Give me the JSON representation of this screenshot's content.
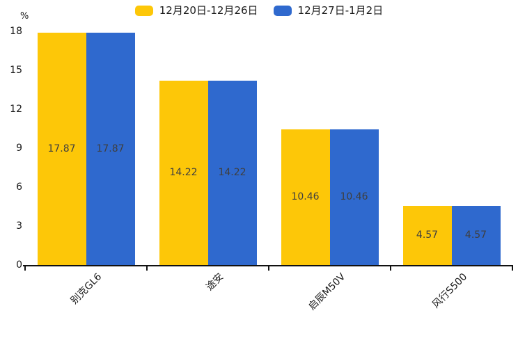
{
  "y_axis": {
    "unit_label": "%",
    "tick_labels": [
      "18",
      "15",
      "12",
      "9",
      "6",
      "3",
      "0"
    ]
  },
  "chart_data": {
    "type": "bar",
    "categories": [
      "别克GL6",
      "途安",
      "启辰M50V",
      "风行S500"
    ],
    "series": [
      {
        "name": "12月20日-12月26日",
        "color": "#FDC708",
        "values": [
          17.87,
          14.22,
          10.46,
          4.57
        ]
      },
      {
        "name": "12月27日-1月2日",
        "color": "#2F69CE",
        "values": [
          17.87,
          14.22,
          10.46,
          4.57
        ]
      }
    ],
    "title": "",
    "xlabel": "",
    "ylabel": "%",
    "ylim": [
      0,
      18
    ],
    "y_tick_step": 3,
    "grid": false,
    "legend_position": "top-center",
    "value_label_position": "centered-in-bar",
    "category_label_rotation_deg": -45
  },
  "colors": {
    "background": "#ffffff",
    "axis": "#111111",
    "tick_label_text": "#1a1a1a",
    "value_label_text": "#3f3f3f"
  }
}
